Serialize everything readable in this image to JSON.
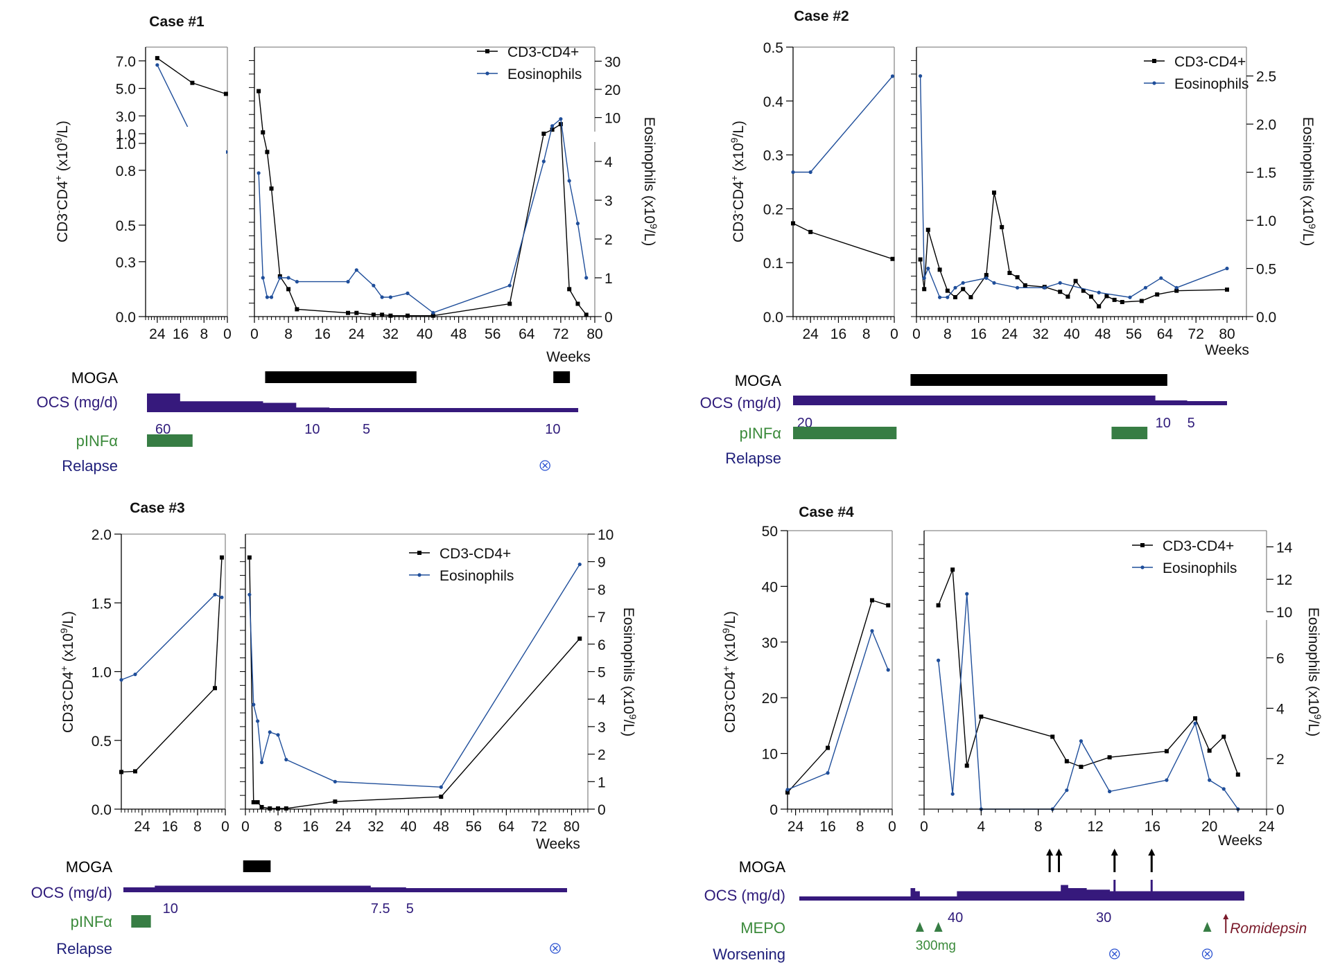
{
  "colors": {
    "cd4": "#000000",
    "eos": "#1f4e9a",
    "moga": "#000000",
    "ocs": "#36197c",
    "ocs_label": "#2e1a7a",
    "pinf": "#377d44",
    "pinf_label": "#3b8a3b",
    "relapse_label": "#1e1e7a",
    "relapse_mark": "#2850d0",
    "romidepsin": "#7a1a2a",
    "axis": "#000000",
    "axis_gray": "#8a8a8a"
  },
  "chart_data": [
    {
      "type": "line",
      "title": "Case #1",
      "ylabel": "CD3-CD4+ (x10^9/L)",
      "y2label": "Eosinophils (x10^9/L)",
      "xlabel": "Weeks",
      "legend": [
        "CD3-CD4+",
        "Eosinophils"
      ],
      "legend_position": "top-right",
      "left_panel": {
        "xlim": [
          28,
          0
        ],
        "x_ticks": [
          24,
          16,
          8,
          0
        ],
        "y_lower": {
          "range": [
            0,
            1.0
          ],
          "ticks": [
            "0.0",
            "0.3",
            "0.5",
            "0.8",
            "1.0"
          ]
        },
        "y_upper": {
          "range": [
            1.0,
            8.0
          ],
          "ticks": [
            "1.0",
            "3.0",
            "5.0",
            "7.0"
          ]
        },
        "cd4": [
          [
            24,
            7.2
          ],
          [
            12,
            5.4
          ],
          [
            0.5,
            4.6
          ]
        ],
        "eos": [
          [
            24,
            6.7
          ],
          [
            12,
            1.5
          ],
          [
            0.5,
            0.9
          ]
        ]
      },
      "right_panel": {
        "xlim": [
          0,
          80
        ],
        "x_ticks": [
          0,
          8,
          16,
          24,
          32,
          40,
          48,
          56,
          64,
          72,
          80
        ],
        "y2_lower": {
          "range": [
            0,
            4.5
          ],
          "ticks": [
            "0",
            "1",
            "2",
            "3",
            "4"
          ]
        },
        "y2_upper": {
          "range": [
            5,
            35
          ],
          "ticks": [
            "10",
            "20",
            "30"
          ]
        },
        "cd4": [
          [
            1,
            4.8
          ],
          [
            2,
            1.8
          ],
          [
            3,
            0.9
          ],
          [
            4,
            0.7
          ],
          [
            6,
            0.22
          ],
          [
            8,
            0.15
          ],
          [
            10,
            0.04
          ],
          [
            22,
            0.02
          ],
          [
            24,
            0.02
          ],
          [
            28,
            0.01
          ],
          [
            30,
            0.01
          ],
          [
            32,
            0.005
          ],
          [
            36,
            0.005
          ],
          [
            42,
            0.005
          ],
          [
            60,
            0.07
          ],
          [
            68,
            1.0
          ],
          [
            70,
            2.0
          ],
          [
            72,
            2.4
          ],
          [
            74,
            0.15
          ],
          [
            76,
            0.07
          ],
          [
            78,
            0.01
          ]
        ],
        "eos": [
          [
            1,
            3.7
          ],
          [
            2,
            1.0
          ],
          [
            3,
            0.5
          ],
          [
            4,
            0.5
          ],
          [
            6,
            1.0
          ],
          [
            8,
            1.0
          ],
          [
            10,
            0.9
          ],
          [
            22,
            0.9
          ],
          [
            24,
            1.2
          ],
          [
            28,
            0.8
          ],
          [
            30,
            0.5
          ],
          [
            32,
            0.5
          ],
          [
            36,
            0.6
          ],
          [
            42,
            0.1
          ],
          [
            60,
            0.8
          ],
          [
            68,
            4.0
          ],
          [
            70,
            7.0
          ],
          [
            72,
            9.5
          ],
          [
            74,
            3.5
          ],
          [
            76,
            2.4
          ],
          [
            78,
            1.0
          ]
        ]
      },
      "timeline": {
        "rows": [
          "MOGA",
          "OCS (mg/d)",
          "pINFα",
          "Relapse"
        ],
        "moga": [
          [
            0.5,
            37
          ],
          [
            70,
            74
          ]
        ],
        "ocs_steps": [
          [
            -28,
            60
          ],
          [
            -20,
            35
          ],
          [
            0,
            30
          ],
          [
            8,
            15
          ],
          [
            16,
            10
          ],
          [
            24,
            5
          ],
          [
            66,
            10
          ],
          [
            76,
            10
          ]
        ],
        "ocs_labels": [
          {
            "x": -26,
            "text": "60"
          },
          {
            "x": 10,
            "text": "10"
          },
          {
            "x": 24,
            "text": "5"
          },
          {
            "x": 68,
            "text": "10"
          }
        ],
        "pinf": [
          [
            -28,
            -17
          ]
        ],
        "relapse": [
          68
        ]
      }
    },
    {
      "type": "line",
      "title": "Case #2",
      "ylabel": "CD3-CD4+ (x10^9/L)",
      "y2label": "Eosinophils (x10^9/L)",
      "xlabel": "Weeks",
      "legend": [
        "CD3-CD4+",
        "Eosinophils"
      ],
      "legend_position": "top-right",
      "left_panel": {
        "xlim": [
          29,
          0
        ],
        "x_ticks": [
          24,
          16,
          8,
          0
        ],
        "y": {
          "range": [
            0,
            0.5
          ],
          "ticks": [
            "0.0",
            "0.1",
            "0.2",
            "0.3",
            "0.4",
            "0.5"
          ]
        },
        "cd4": [
          [
            29,
            0.173
          ],
          [
            24,
            0.157
          ],
          [
            0.5,
            0.107
          ]
        ],
        "eos": [
          [
            29,
            0.268
          ],
          [
            24,
            0.268
          ],
          [
            0.5,
            0.446
          ]
        ]
      },
      "right_panel": {
        "xlim": [
          0,
          85
        ],
        "x_ticks": [
          0,
          8,
          16,
          24,
          32,
          40,
          48,
          56,
          64,
          72,
          80
        ],
        "y2": {
          "range": [
            0,
            2.8
          ],
          "ticks": [
            "0.0",
            "0.5",
            "1.0",
            "1.5",
            "2.0",
            "2.5"
          ]
        },
        "cd4": [
          [
            1,
            0.106
          ],
          [
            2,
            0.051
          ],
          [
            3,
            0.161
          ],
          [
            6,
            0.087
          ],
          [
            8,
            0.048
          ],
          [
            10,
            0.036
          ],
          [
            12,
            0.051
          ],
          [
            14,
            0.036
          ],
          [
            18,
            0.077
          ],
          [
            20,
            0.23
          ],
          [
            22,
            0.166
          ],
          [
            24,
            0.081
          ],
          [
            26,
            0.073
          ],
          [
            28,
            0.058
          ],
          [
            33,
            0.055
          ],
          [
            37,
            0.046
          ],
          [
            39,
            0.037
          ],
          [
            41,
            0.066
          ],
          [
            43,
            0.048
          ],
          [
            45,
            0.037
          ],
          [
            47,
            0.019
          ],
          [
            49,
            0.038
          ],
          [
            51,
            0.031
          ],
          [
            53,
            0.027
          ],
          [
            58,
            0.029
          ],
          [
            62,
            0.041
          ],
          [
            67,
            0.048
          ],
          [
            80,
            0.05
          ]
        ],
        "eos": [
          [
            1,
            2.5
          ],
          [
            2,
            0.4
          ],
          [
            3,
            0.5
          ],
          [
            6,
            0.2
          ],
          [
            8,
            0.2
          ],
          [
            10,
            0.3
          ],
          [
            12,
            0.35
          ],
          [
            18,
            0.4
          ],
          [
            20,
            0.35
          ],
          [
            26,
            0.3
          ],
          [
            33,
            0.3
          ],
          [
            37,
            0.35
          ],
          [
            47,
            0.25
          ],
          [
            55,
            0.2
          ],
          [
            59,
            0.3
          ],
          [
            63,
            0.4
          ],
          [
            67,
            0.3
          ],
          [
            80,
            0.5
          ]
        ]
      },
      "timeline": {
        "rows": [
          "MOGA",
          "OCS (mg/d)",
          "pINFα",
          "Relapse"
        ],
        "moga": [
          [
            0.5,
            65
          ]
        ],
        "ocs_steps": [
          [
            -29,
            20
          ],
          [
            62,
            10
          ],
          [
            70,
            5
          ],
          [
            80,
            5
          ]
        ],
        "ocs_labels": [
          {
            "x": -28,
            "text": "20"
          },
          {
            "x": 62,
            "text": "10"
          },
          {
            "x": 70,
            "text": "5"
          }
        ],
        "pinf": [
          [
            -29,
            -3
          ],
          [
            51,
            60
          ]
        ],
        "relapse": []
      }
    },
    {
      "type": "line",
      "title": "Case #3",
      "ylabel": "CD3-CD4+ (x10^9/L)",
      "y2label": "Eosinophils (x10^9/L)",
      "xlabel": "Weeks",
      "legend": [
        "CD3-CD4+",
        "Eosinophils"
      ],
      "legend_position": "top-right",
      "left_panel": {
        "xlim": [
          30,
          0
        ],
        "x_ticks": [
          24,
          16,
          8,
          0
        ],
        "y": {
          "range": [
            0,
            2.0
          ],
          "ticks": [
            "0.0",
            "0.5",
            "1.0",
            "1.5",
            "2.0"
          ]
        },
        "cd4": [
          [
            30,
            0.27
          ],
          [
            26,
            0.275
          ],
          [
            3,
            0.88
          ],
          [
            1,
            1.83
          ]
        ],
        "eos": [
          [
            30,
            0.94
          ],
          [
            26,
            0.98
          ],
          [
            3,
            1.56
          ],
          [
            1,
            1.54
          ]
        ]
      },
      "right_panel": {
        "xlim": [
          0,
          84
        ],
        "x_ticks": [
          0,
          8,
          16,
          24,
          32,
          40,
          48,
          56,
          64,
          72,
          80
        ],
        "y2": {
          "range": [
            0,
            10
          ],
          "ticks": [
            "0",
            "1",
            "2",
            "3",
            "4",
            "5",
            "6",
            "7",
            "8",
            "9",
            "10"
          ]
        },
        "cd4": [
          [
            1,
            1.83
          ],
          [
            2,
            0.05
          ],
          [
            3,
            0.05
          ],
          [
            4,
            0.015
          ],
          [
            6,
            0.005
          ],
          [
            8,
            0.005
          ],
          [
            10,
            0.005
          ],
          [
            22,
            0.055
          ],
          [
            48,
            0.09
          ],
          [
            82,
            1.24
          ]
        ],
        "eos": [
          [
            1,
            7.8
          ],
          [
            2,
            3.8
          ],
          [
            3,
            3.2
          ],
          [
            4,
            1.7
          ],
          [
            6,
            2.8
          ],
          [
            8,
            2.7
          ],
          [
            10,
            1.8
          ],
          [
            22,
            1.0
          ],
          [
            48,
            0.8
          ],
          [
            82,
            8.9
          ]
        ]
      },
      "timeline": {
        "rows": [
          "MOGA",
          "OCS (mg/d)",
          "pINFα",
          "Relapse"
        ],
        "moga": [
          [
            0.5,
            7.5
          ]
        ],
        "ocs_steps": [
          [
            -30,
            7.5
          ],
          [
            -22,
            10
          ],
          [
            33,
            7.5
          ],
          [
            42,
            5
          ],
          [
            83,
            5
          ]
        ],
        "ocs_labels": [
          {
            "x": -20,
            "text": "10"
          },
          {
            "x": 33,
            "text": "7.5"
          },
          {
            "x": 42,
            "text": "5"
          }
        ],
        "pinf": [
          [
            -28,
            -23
          ]
        ],
        "relapse": [
          80
        ]
      }
    },
    {
      "type": "line",
      "title": "Case #4",
      "ylabel": "CD3-CD4+ (x10^9/L)",
      "y2label": "Eosinophils (x10^9/L)",
      "xlabel": "Weeks",
      "legend": [
        "CD3-CD4+",
        "Eosinophils"
      ],
      "legend_position": "top-right",
      "left_panel": {
        "xlim": [
          26,
          0
        ],
        "x_ticks": [
          24,
          16,
          8,
          0
        ],
        "y": {
          "range": [
            0,
            50
          ],
          "ticks": [
            "0",
            "10",
            "20",
            "30",
            "40",
            "50"
          ]
        },
        "cd4": [
          [
            26,
            3
          ],
          [
            16,
            11
          ],
          [
            5,
            37.5
          ],
          [
            1,
            36.6
          ]
        ],
        "eos": [
          [
            26,
            3.5
          ],
          [
            16,
            6.5
          ],
          [
            5,
            32
          ],
          [
            1,
            25
          ]
        ]
      },
      "right_panel": {
        "xlim": [
          0,
          24
        ],
        "x_ticks": [
          0,
          4,
          8,
          12,
          16,
          20,
          24
        ],
        "y2_lower": {
          "range": [
            0,
            7.5
          ],
          "ticks": [
            "0",
            "2",
            "4",
            "6"
          ]
        },
        "y2_upper": {
          "range": [
            10,
            15
          ],
          "ticks": [
            "10",
            "12",
            "14"
          ]
        },
        "cd4": [
          [
            1,
            36.6
          ],
          [
            2,
            43
          ],
          [
            3,
            7.8
          ],
          [
            4,
            16.6
          ],
          [
            9,
            13
          ],
          [
            10,
            8.6
          ],
          [
            11,
            7.6
          ],
          [
            13,
            9.3
          ],
          [
            17,
            10.4
          ],
          [
            19,
            16.3
          ],
          [
            20,
            10.5
          ],
          [
            21,
            13
          ],
          [
            22,
            6.2
          ]
        ],
        "eos": [
          [
            1,
            5.9
          ],
          [
            2,
            0.6
          ],
          [
            3,
            11.1
          ],
          [
            4,
            0
          ],
          [
            9,
            0
          ],
          [
            10,
            0.75
          ],
          [
            11,
            2.7
          ],
          [
            13,
            0.7
          ],
          [
            17,
            1.15
          ],
          [
            19,
            3.4
          ],
          [
            20,
            1.15
          ],
          [
            21,
            0.8
          ],
          [
            22,
            0
          ]
        ]
      },
      "timeline": {
        "rows": [
          "MOGA",
          "OCS (mg/d)",
          "MEPO",
          "Worsening"
        ],
        "moga_arrows": [
          1,
          2,
          8,
          12
        ],
        "ocs_steps": [
          [
            -26,
            10
          ],
          [
            -14,
            40
          ],
          [
            -13.5,
            30
          ],
          [
            -13,
            10
          ],
          [
            -9,
            30
          ],
          [
            2.2,
            50
          ],
          [
            3,
            40
          ],
          [
            5,
            35
          ],
          [
            7.5,
            30
          ],
          [
            22,
            30
          ]
        ],
        "ocs_spikes": [
          8,
          12
        ],
        "ocs_labels": [
          {
            "x": -10,
            "text": "40"
          },
          {
            "x": 6,
            "text": "30"
          }
        ],
        "mepo": [
          -13,
          -11,
          18
        ],
        "mepo_label": "300mg",
        "romidepsin": {
          "x": 20,
          "label": "Romidepsin"
        },
        "worsening": [
          8,
          18
        ]
      }
    }
  ]
}
